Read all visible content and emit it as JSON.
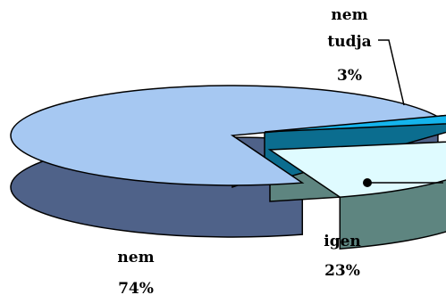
{
  "chart_data": {
    "type": "pie",
    "title": "",
    "three_d": true,
    "exploded": true,
    "slices": [
      {
        "label": "nem",
        "percent_label": "74%",
        "value": 74,
        "color": "#a6c8f2",
        "side_color": "#4f6289"
      },
      {
        "label": "nem tudja",
        "percent_label": "3%",
        "value": 3,
        "color": "#14b4ec",
        "side_color": "#0b6d8f"
      },
      {
        "label": "igen",
        "percent_label": "23%",
        "value": 23,
        "color": "#dffbff",
        "side_color": "#5e8580"
      }
    ],
    "legend": "none"
  }
}
